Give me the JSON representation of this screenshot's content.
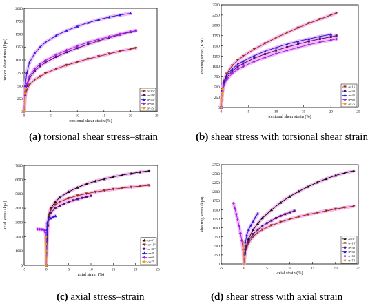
{
  "colors": {
    "black": "#111111",
    "brown": "#9b2d0f",
    "purple_dark": "#4a1673",
    "blue": "#1f1fe0",
    "violet": "#a020f0",
    "orange": "#e8a000",
    "fill": "#f0a8f0"
  },
  "captions": [
    {
      "label": "(a)",
      "text": " torsional shear stress–strain"
    },
    {
      "label": "(b)",
      "text": " shear stress with torsional shear strain"
    },
    {
      "label": "(c)",
      "text": " axial stress–strain"
    },
    {
      "label": "(d)",
      "text": " shear stress with axial strain"
    }
  ],
  "chart_data": [
    {
      "type": "line",
      "xlabel": "torsional shear strain (%)",
      "ylabel": "torsion shear stress (kpa)",
      "xlim": [
        0,
        25
      ],
      "ylim": [
        0,
        2000
      ],
      "xticks": [
        0,
        5,
        10,
        15,
        20,
        25
      ],
      "yticks": [
        0,
        250,
        500,
        750,
        1000,
        1250,
        1500,
        1750,
        2000
      ],
      "grid": false,
      "legend_position": "bottom-right",
      "series": [
        {
          "name": "α=15°",
          "color_key": "brown",
          "marker": "tri-down",
          "x": [
            0,
            0.2,
            0.5,
            1,
            2,
            3,
            4,
            6,
            8,
            10,
            12,
            14,
            16,
            18,
            20,
            21
          ],
          "y": [
            0,
            300,
            420,
            520,
            620,
            680,
            740,
            830,
            900,
            960,
            1020,
            1070,
            1120,
            1170,
            1210,
            1230
          ]
        },
        {
          "name": "α=30°",
          "color_key": "purple_dark",
          "marker": "square",
          "x": [
            0,
            0.2,
            0.5,
            1,
            2,
            3,
            4,
            6,
            8,
            10,
            12,
            14,
            16,
            18,
            20,
            21
          ],
          "y": [
            0,
            350,
            500,
            640,
            790,
            880,
            950,
            1060,
            1150,
            1230,
            1300,
            1370,
            1430,
            1490,
            1540,
            1570
          ]
        },
        {
          "name": "α=45°",
          "color_key": "blue",
          "marker": "triangle",
          "x": [
            0,
            0.2,
            0.5,
            1,
            2,
            3,
            4,
            6,
            8,
            10,
            12,
            14,
            16,
            18,
            20
          ],
          "y": [
            0,
            500,
            750,
            950,
            1130,
            1250,
            1340,
            1470,
            1570,
            1650,
            1720,
            1780,
            1830,
            1870,
            1900
          ]
        },
        {
          "name": "α=60",
          "color_key": "violet",
          "marker": "diamond",
          "x": [
            0,
            0.2,
            0.5,
            1,
            2,
            3,
            4,
            6,
            8,
            10,
            12,
            14,
            16,
            18,
            20,
            21
          ],
          "y": [
            0,
            380,
            540,
            680,
            830,
            920,
            990,
            1100,
            1190,
            1270,
            1340,
            1400,
            1450,
            1500,
            1550,
            1560
          ]
        },
        {
          "name": "α=75",
          "color_key": "orange",
          "marker": "circle",
          "x": [
            0,
            0.1,
            0.2,
            0.3
          ],
          "y": [
            0,
            200,
            350,
            450
          ]
        }
      ]
    },
    {
      "type": "line",
      "xlabel": "torsional shear strain (%)",
      "ylabel": "shearing stress (Kpa)",
      "xlim": [
        0,
        25
      ],
      "ylim": [
        0,
        2500
      ],
      "xticks": [
        0,
        5,
        10,
        15,
        20,
        25
      ],
      "yticks": [
        0,
        250,
        500,
        750,
        1000,
        1250,
        1500,
        1750,
        2000,
        2250,
        2500
      ],
      "grid": false,
      "legend_position": "bottom-right",
      "series": [
        {
          "name": "α=15",
          "color_key": "brown",
          "marker": "tri-down",
          "x": [
            0,
            0.2,
            0.5,
            1,
            2,
            3,
            4,
            6,
            8,
            10,
            12,
            14,
            16,
            18,
            20,
            21
          ],
          "y": [
            0,
            450,
            650,
            820,
            1020,
            1150,
            1250,
            1420,
            1560,
            1700,
            1820,
            1940,
            2050,
            2150,
            2250,
            2300
          ]
        },
        {
          "name": "α=30",
          "color_key": "purple_dark",
          "marker": "square",
          "x": [
            0,
            0.2,
            0.5,
            1,
            2,
            3,
            4,
            6,
            8,
            10,
            12,
            14,
            16,
            18,
            20,
            21
          ],
          "y": [
            0,
            400,
            580,
            730,
            890,
            990,
            1070,
            1200,
            1300,
            1390,
            1470,
            1540,
            1610,
            1670,
            1720,
            1750
          ]
        },
        {
          "name": "α=45",
          "color_key": "blue",
          "marker": "triangle",
          "x": [
            0,
            0.2,
            0.5,
            1,
            2,
            3,
            4,
            6,
            8,
            10,
            12,
            14,
            16,
            18,
            20
          ],
          "y": [
            0,
            420,
            620,
            780,
            940,
            1050,
            1130,
            1260,
            1370,
            1460,
            1540,
            1610,
            1670,
            1730,
            1780
          ]
        },
        {
          "name": "α=60",
          "color_key": "violet",
          "marker": "diamond",
          "x": [
            0,
            0.2,
            0.5,
            1,
            2,
            3,
            4,
            6,
            8,
            10,
            12,
            14,
            16,
            18,
            20,
            21
          ],
          "y": [
            0,
            380,
            540,
            680,
            830,
            930,
            1000,
            1120,
            1220,
            1310,
            1390,
            1460,
            1530,
            1590,
            1640,
            1670
          ]
        },
        {
          "name": "α=75",
          "color_key": "orange",
          "marker": "circle",
          "x": [
            0,
            0.1,
            0.2,
            0.3
          ],
          "y": [
            0,
            200,
            350,
            450
          ]
        }
      ]
    },
    {
      "type": "line",
      "xlabel": "axial strain (%)",
      "ylabel": "axial stress (kpa)",
      "xlim": [
        -5,
        25
      ],
      "ylim": [
        0,
        7000
      ],
      "xticks": [
        -5,
        0,
        5,
        10,
        15,
        20,
        25
      ],
      "yticks": [
        0,
        1000,
        2000,
        3000,
        4000,
        5000,
        6000,
        7000
      ],
      "grid": false,
      "legend_position": "bottom-right",
      "series": [
        {
          "name": "α=0°",
          "color_key": "black",
          "marker": "triangle",
          "x": [
            0,
            0.1,
            0.3,
            0.6,
            1,
            2,
            3,
            5,
            7,
            9,
            11,
            13,
            15,
            17,
            19,
            21,
            23
          ],
          "y": [
            0,
            1500,
            2800,
            3600,
            4000,
            4450,
            4750,
            5150,
            5450,
            5700,
            5900,
            6050,
            6200,
            6320,
            6430,
            6530,
            6620
          ]
        },
        {
          "name": "α=15°",
          "color_key": "brown",
          "marker": "tri-down",
          "x": [
            0,
            0.1,
            0.3,
            0.6,
            1,
            2,
            3,
            5,
            7,
            9,
            11,
            13,
            15,
            17,
            19,
            21,
            23
          ],
          "y": [
            0,
            1500,
            2800,
            3500,
            3900,
            4250,
            4450,
            4700,
            4880,
            5020,
            5140,
            5240,
            5330,
            5410,
            5480,
            5540,
            5600
          ]
        },
        {
          "name": "α=30°",
          "color_key": "purple_dark",
          "marker": "square",
          "x": [
            0,
            0.1,
            0.3,
            0.6,
            1,
            2,
            3,
            4,
            5,
            6,
            7,
            8,
            9,
            10
          ],
          "y": [
            0,
            1500,
            2800,
            3400,
            3700,
            4000,
            4180,
            4320,
            4440,
            4550,
            4640,
            4720,
            4800,
            4870
          ]
        },
        {
          "name": "α=45",
          "color_key": "blue",
          "marker": "triangle",
          "x": [
            0,
            0.05,
            0.1,
            0.2,
            0.5,
            1,
            1.5,
            2
          ],
          "y": [
            0,
            1500,
            2500,
            3000,
            3200,
            3300,
            3380,
            3450
          ]
        },
        {
          "name": "α=60",
          "color_key": "violet",
          "marker": "diamond",
          "x": [
            0,
            -0.05,
            -0.2,
            -0.4,
            -0.7,
            -1,
            -1.5,
            -2
          ],
          "y": [
            0,
            1500,
            2300,
            2450,
            2500,
            2510,
            2520,
            2530
          ]
        },
        {
          "name": "α=75",
          "color_key": "orange",
          "marker": "circle",
          "x": [
            0,
            -0.02,
            -0.05,
            -0.08,
            -0.1
          ],
          "y": [
            0,
            500,
            1000,
            1500,
            2000
          ]
        }
      ]
    },
    {
      "type": "line",
      "xlabel": "axial strain (%)",
      "ylabel": "shearing stress (kpa)",
      "xlim": [
        -5,
        25
      ],
      "ylim": [
        0,
        2750
      ],
      "xticks": [
        -5,
        0,
        5,
        10,
        15,
        20,
        25
      ],
      "yticks": [
        0,
        250,
        500,
        750,
        1000,
        1250,
        1500,
        1750,
        2000,
        2250,
        2500,
        2750
      ],
      "grid": false,
      "legend_position": "bottom-right",
      "series": [
        {
          "name": "α=0°",
          "color_key": "black",
          "marker": "triangle",
          "x": [
            0,
            0.2,
            0.5,
            1,
            2,
            3,
            4,
            6,
            8,
            10,
            12,
            14,
            16,
            18,
            20,
            22,
            24
          ],
          "y": [
            0,
            300,
            500,
            700,
            950,
            1120,
            1270,
            1500,
            1700,
            1870,
            2010,
            2140,
            2260,
            2360,
            2450,
            2520,
            2580
          ]
        },
        {
          "name": "α=15°",
          "color_key": "brown",
          "marker": "tri-down",
          "x": [
            0,
            0.2,
            0.5,
            1,
            2,
            3,
            4,
            6,
            8,
            10,
            12,
            14,
            16,
            18,
            20,
            22,
            24
          ],
          "y": [
            0,
            250,
            420,
            580,
            760,
            870,
            950,
            1070,
            1160,
            1240,
            1310,
            1370,
            1420,
            1470,
            1520,
            1560,
            1600
          ]
        },
        {
          "name": "α=30",
          "color_key": "purple_dark",
          "marker": "square",
          "x": [
            0,
            0.2,
            0.5,
            1,
            2,
            3,
            4,
            5,
            6,
            7,
            8,
            9,
            10,
            11
          ],
          "y": [
            0,
            300,
            480,
            640,
            830,
            950,
            1050,
            1130,
            1200,
            1270,
            1330,
            1380,
            1430,
            1470
          ]
        },
        {
          "name": "α=45",
          "color_key": "blue",
          "marker": "triangle",
          "x": [
            0,
            0.1,
            0.3,
            0.6,
            1,
            1.5,
            2,
            2.5,
            3
          ],
          "y": [
            0,
            350,
            600,
            800,
            950,
            1070,
            1180,
            1290,
            1400
          ]
        },
        {
          "name": "α=60",
          "color_key": "violet",
          "marker": "diamond",
          "x": [
            0,
            -0.2,
            -0.5,
            -0.8,
            -1.1,
            -1.4,
            -1.7,
            -2,
            -2.3
          ],
          "y": [
            0,
            400,
            650,
            850,
            1050,
            1220,
            1380,
            1530,
            1680
          ]
        },
        {
          "name": "α=75",
          "color_key": "orange",
          "marker": "circle",
          "x": [
            0,
            -0.03,
            -0.06,
            -0.09,
            -0.12
          ],
          "y": [
            0,
            200,
            350,
            500,
            600
          ]
        }
      ]
    }
  ]
}
